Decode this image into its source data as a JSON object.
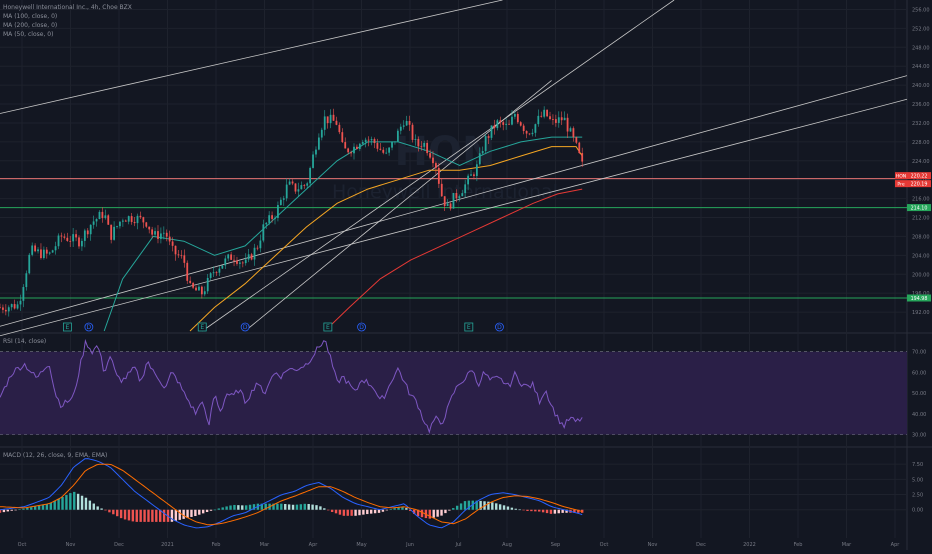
{
  "header": {
    "legend_main": "Honeywell International Inc., 4h, Choe BZX",
    "legend_ma100": "MA (100, close, 0)",
    "legend_ma200": "MA (200, close, 0)",
    "legend_ma50": "MA (50, close, 0)",
    "rsi_title": "RSI (14, close)",
    "macd_title": "MACD (12, 26, close, 9, EMA, EMA)",
    "watermark": "HON",
    "watermark_sub": "Honeywell International"
  },
  "price_axis": {
    "labels": [
      "256.00",
      "252.00",
      "248.00",
      "244.00",
      "240.00",
      "236.00",
      "232.00",
      "228.00",
      "224.00",
      "220.00",
      "216.00",
      "212.00",
      "208.00",
      "204.00",
      "200.00",
      "196.00",
      "192.00"
    ],
    "ylim": [
      188,
      258
    ]
  },
  "price_tags": [
    {
      "label": "HON",
      "value": "220.22",
      "color": "#e53935"
    },
    {
      "label": "Pre",
      "value": "220.19",
      "color": "#e53935"
    },
    {
      "label": "",
      "value": "214.10",
      "color": "#26a65b"
    },
    {
      "label": "",
      "value": "194.98",
      "color": "#26a65b"
    }
  ],
  "rsi_axis": {
    "labels": [
      "70.00",
      "60.00",
      "50.00",
      "40.00",
      "30.00"
    ],
    "ylim": [
      25,
      78
    ],
    "upper": 70,
    "lower": 30
  },
  "macd_axis": {
    "labels": [
      "7.50",
      "5.00",
      "2.50",
      "0.00"
    ],
    "ylim": [
      -3.5,
      10
    ]
  },
  "time_axis": [
    "Oct",
    "Nov",
    "Dec",
    "2021",
    "Feb",
    "Mar",
    "Apr",
    "May",
    "Jun",
    "Jul",
    "Aug",
    "Sep",
    "Oct",
    "Nov",
    "Dec",
    "2022",
    "Feb",
    "Mar",
    "Apr"
  ],
  "event_markers": [
    {
      "label": "E",
      "kind": "earnings"
    },
    {
      "label": "D",
      "kind": "dividend"
    },
    {
      "label": "E",
      "kind": "earnings"
    },
    {
      "label": "D",
      "kind": "dividend"
    },
    {
      "label": "E",
      "kind": "earnings"
    },
    {
      "label": "D",
      "kind": "dividend"
    },
    {
      "label": "E",
      "kind": "earnings"
    },
    {
      "label": "D",
      "kind": "dividend"
    }
  ],
  "chart_data": [
    {
      "type": "candlestick",
      "title": "Honeywell International Inc., 4h, Choe BZX",
      "ylim": [
        188,
        258
      ],
      "price_path": [
        [
          0,
          193
        ],
        [
          3,
          193.5
        ],
        [
          5,
          205
        ],
        [
          8,
          204
        ],
        [
          10,
          208
        ],
        [
          13,
          207
        ],
        [
          15,
          211
        ],
        [
          17,
          213
        ],
        [
          18,
          208
        ],
        [
          20,
          212
        ],
        [
          22,
          212
        ],
        [
          24,
          211
        ],
        [
          25,
          208
        ],
        [
          27,
          209
        ],
        [
          28,
          205
        ],
        [
          30,
          203
        ],
        [
          31,
          197
        ],
        [
          33,
          196
        ],
        [
          35,
          201
        ],
        [
          38,
          204
        ],
        [
          40,
          202
        ],
        [
          42,
          206
        ],
        [
          43,
          210
        ],
        [
          45,
          213
        ],
        [
          46,
          216
        ],
        [
          47,
          219
        ],
        [
          48,
          218
        ],
        [
          50,
          219
        ],
        [
          52,
          230
        ],
        [
          53,
          233
        ],
        [
          55,
          232
        ],
        [
          56,
          226
        ],
        [
          58,
          227
        ],
        [
          59,
          229
        ],
        [
          61,
          228
        ],
        [
          63,
          225
        ],
        [
          65,
          230
        ],
        [
          66,
          233
        ],
        [
          67,
          230
        ],
        [
          68,
          227
        ],
        [
          69,
          228
        ],
        [
          71,
          224
        ],
        [
          72,
          217
        ],
        [
          73,
          214
        ],
        [
          74,
          216
        ],
        [
          76,
          219
        ],
        [
          78,
          223
        ],
        [
          79,
          228
        ],
        [
          81,
          232
        ],
        [
          83,
          231
        ],
        [
          84,
          234
        ],
        [
          86,
          230
        ],
        [
          87,
          231
        ],
        [
          88,
          233
        ],
        [
          89,
          234
        ],
        [
          90,
          232
        ],
        [
          92,
          233
        ],
        [
          93,
          230
        ],
        [
          94,
          227
        ],
        [
          95,
          223
        ],
        [
          96,
          221
        ]
      ],
      "ma_lines": [
        {
          "name": "MA (50, close, 0)",
          "color": "#26a69a",
          "points": [
            [
              17,
              188
            ],
            [
              20,
              199
            ],
            [
              25,
              208
            ],
            [
              30,
              207
            ],
            [
              35,
              204
            ],
            [
              40,
              206
            ],
            [
              45,
              212
            ],
            [
              50,
              218
            ],
            [
              55,
              224
            ],
            [
              60,
              228
            ],
            [
              65,
              228
            ],
            [
              70,
              226
            ],
            [
              75,
              223
            ],
            [
              80,
              226
            ],
            [
              85,
              228
            ],
            [
              90,
              229
            ],
            [
              95,
              229
            ]
          ]
        },
        {
          "name": "MA (100, close, 0)",
          "color": "#f5a623",
          "points": [
            [
              31,
              188
            ],
            [
              35,
              193
            ],
            [
              40,
              198
            ],
            [
              45,
              204
            ],
            [
              50,
              210
            ],
            [
              55,
              215
            ],
            [
              60,
              218
            ],
            [
              65,
              220
            ],
            [
              70,
              222
            ],
            [
              75,
              222
            ],
            [
              80,
              223
            ],
            [
              85,
              225
            ],
            [
              90,
              227
            ],
            [
              94,
              227
            ],
            [
              95,
              225
            ]
          ]
        },
        {
          "name": "MA (200, close, 0)",
          "color": "#e53935",
          "points": [
            [
              53,
              188
            ],
            [
              57,
              193
            ],
            [
              62,
              199
            ],
            [
              67,
              203
            ],
            [
              72,
              206
            ],
            [
              77,
              209
            ],
            [
              82,
              212
            ],
            [
              87,
              215
            ],
            [
              91,
              217
            ],
            [
              95,
              218
            ]
          ]
        }
      ],
      "horizontal_levels": [
        {
          "value": 220.22,
          "color": "#e57373"
        },
        {
          "value": 214.1,
          "color": "#26a65b"
        },
        {
          "value": 194.98,
          "color": "#26a65b"
        }
      ],
      "trendlines": [
        [
          [
            0,
            234
          ],
          [
            82,
            258
          ]
        ],
        [
          [
            0,
            189
          ],
          [
            148,
            242
          ]
        ],
        [
          [
            0,
            187
          ],
          [
            148,
            237
          ]
        ],
        [
          [
            33,
            188
          ],
          [
            110,
            258
          ]
        ],
        [
          [
            40,
            188
          ],
          [
            90,
            241
          ]
        ]
      ]
    },
    {
      "type": "line",
      "title": "RSI (14, close)",
      "ylim": [
        25,
        78
      ],
      "bands": {
        "upper": 70,
        "lower": 30
      },
      "points": [
        [
          0,
          48
        ],
        [
          2,
          60
        ],
        [
          4,
          64
        ],
        [
          6,
          57
        ],
        [
          8,
          65
        ],
        [
          9,
          50
        ],
        [
          10,
          44
        ],
        [
          12,
          48
        ],
        [
          13,
          62
        ],
        [
          14,
          75
        ],
        [
          15,
          70
        ],
        [
          16,
          73
        ],
        [
          17,
          60
        ],
        [
          18,
          68
        ],
        [
          19,
          58
        ],
        [
          20,
          56
        ],
        [
          22,
          62
        ],
        [
          23,
          55
        ],
        [
          24,
          66
        ],
        [
          25,
          60
        ],
        [
          26,
          57
        ],
        [
          27,
          52
        ],
        [
          28,
          60
        ],
        [
          29,
          56
        ],
        [
          30,
          50
        ],
        [
          31,
          45
        ],
        [
          32,
          40
        ],
        [
          33,
          47
        ],
        [
          34,
          33
        ],
        [
          35,
          50
        ],
        [
          36,
          41
        ],
        [
          37,
          50
        ],
        [
          38,
          48
        ],
        [
          39,
          52
        ],
        [
          40,
          46
        ],
        [
          41,
          50
        ],
        [
          42,
          56
        ],
        [
          43,
          49
        ],
        [
          44,
          56
        ],
        [
          45,
          60
        ],
        [
          46,
          58
        ],
        [
          47,
          62
        ],
        [
          48,
          61
        ],
        [
          50,
          64
        ],
        [
          52,
          72
        ],
        [
          53,
          76
        ],
        [
          54,
          66
        ],
        [
          55,
          55
        ],
        [
          56,
          58
        ],
        [
          58,
          50
        ],
        [
          59,
          57
        ],
        [
          60,
          55
        ],
        [
          61,
          53
        ],
        [
          62,
          46
        ],
        [
          63,
          50
        ],
        [
          64,
          57
        ],
        [
          65,
          62
        ],
        [
          66,
          55
        ],
        [
          67,
          49
        ],
        [
          68,
          46
        ],
        [
          69,
          38
        ],
        [
          70,
          32
        ],
        [
          71,
          38
        ],
        [
          72,
          35
        ],
        [
          73,
          42
        ],
        [
          74,
          50
        ],
        [
          75,
          55
        ],
        [
          76,
          57
        ],
        [
          77,
          62
        ],
        [
          78,
          54
        ],
        [
          79,
          60
        ],
        [
          80,
          56
        ],
        [
          81,
          57
        ],
        [
          82,
          56
        ],
        [
          83,
          53
        ],
        [
          84,
          59
        ],
        [
          85,
          55
        ],
        [
          86,
          53
        ],
        [
          87,
          54
        ],
        [
          88,
          46
        ],
        [
          89,
          52
        ],
        [
          90,
          44
        ],
        [
          91,
          38
        ],
        [
          92,
          34
        ],
        [
          93,
          38
        ],
        [
          94,
          36
        ],
        [
          95,
          38
        ]
      ]
    },
    {
      "type": "bar",
      "title": "MACD (12, 26, close, 9, EMA, EMA)",
      "ylim": [
        -3.5,
        10
      ],
      "macd_line": [
        [
          0,
          0
        ],
        [
          4,
          0.5
        ],
        [
          8,
          2
        ],
        [
          10,
          4
        ],
        [
          12,
          7
        ],
        [
          14,
          8.5
        ],
        [
          16,
          8
        ],
        [
          18,
          7
        ],
        [
          20,
          5
        ],
        [
          22,
          3
        ],
        [
          24,
          1.5
        ],
        [
          26,
          0
        ],
        [
          28,
          -1.5
        ],
        [
          30,
          -2.5
        ],
        [
          32,
          -3
        ],
        [
          34,
          -2.8
        ],
        [
          36,
          -2
        ],
        [
          38,
          -1
        ],
        [
          40,
          -0.5
        ],
        [
          42,
          0.5
        ],
        [
          44,
          1.5
        ],
        [
          46,
          2.5
        ],
        [
          48,
          3
        ],
        [
          50,
          4
        ],
        [
          52,
          4.5
        ],
        [
          54,
          3.5
        ],
        [
          56,
          2
        ],
        [
          58,
          1
        ],
        [
          60,
          0.5
        ],
        [
          62,
          0
        ],
        [
          64,
          0.5
        ],
        [
          66,
          1
        ],
        [
          68,
          -1
        ],
        [
          70,
          -2.5
        ],
        [
          72,
          -3
        ],
        [
          74,
          -2
        ],
        [
          76,
          0
        ],
        [
          78,
          1.5
        ],
        [
          80,
          2.5
        ],
        [
          82,
          2.8
        ],
        [
          84,
          2.5
        ],
        [
          86,
          2
        ],
        [
          88,
          1.5
        ],
        [
          90,
          0.5
        ],
        [
          92,
          0
        ],
        [
          94,
          -0.5
        ],
        [
          95,
          -0.8
        ]
      ],
      "signal_line": [
        [
          0,
          0.5
        ],
        [
          4,
          0.3
        ],
        [
          8,
          1
        ],
        [
          10,
          2
        ],
        [
          12,
          4
        ],
        [
          14,
          6.5
        ],
        [
          16,
          7.5
        ],
        [
          18,
          7.5
        ],
        [
          20,
          6.5
        ],
        [
          22,
          5
        ],
        [
          24,
          3.5
        ],
        [
          26,
          2
        ],
        [
          28,
          0.5
        ],
        [
          30,
          -1
        ],
        [
          32,
          -2
        ],
        [
          34,
          -2.5
        ],
        [
          36,
          -2.3
        ],
        [
          38,
          -1.8
        ],
        [
          40,
          -1.2
        ],
        [
          42,
          -0.5
        ],
        [
          44,
          0.5
        ],
        [
          46,
          1.5
        ],
        [
          48,
          2.2
        ],
        [
          50,
          3
        ],
        [
          52,
          3.8
        ],
        [
          54,
          3.8
        ],
        [
          56,
          3
        ],
        [
          58,
          2
        ],
        [
          60,
          1.2
        ],
        [
          62,
          0.5
        ],
        [
          64,
          0.3
        ],
        [
          66,
          0.5
        ],
        [
          68,
          0
        ],
        [
          70,
          -1
        ],
        [
          72,
          -2
        ],
        [
          74,
          -2.3
        ],
        [
          76,
          -1.5
        ],
        [
          78,
          0
        ],
        [
          80,
          1.2
        ],
        [
          82,
          2
        ],
        [
          84,
          2.3
        ],
        [
          86,
          2.2
        ],
        [
          88,
          1.8
        ],
        [
          90,
          1.2
        ],
        [
          92,
          0.5
        ],
        [
          94,
          0
        ],
        [
          95,
          -0.3
        ]
      ],
      "histogram_note": "histogram = macd_line - signal_line"
    }
  ]
}
